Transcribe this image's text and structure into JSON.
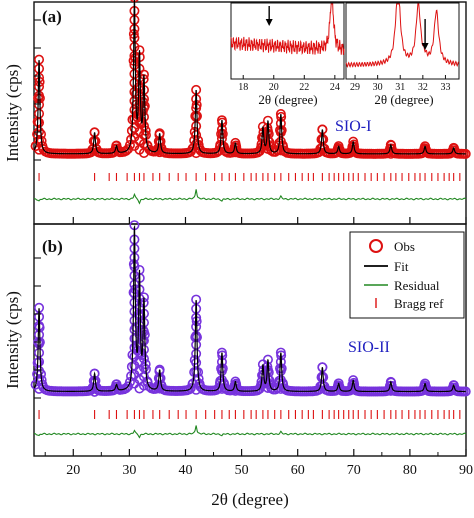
{
  "chart_data": [
    {
      "panel": "(a)",
      "type": "line",
      "sample_label": "SIO-I",
      "sample_color": "#2020c0",
      "obs_color": "#dd1111",
      "ylabel": "Intensity (cps)",
      "xlim": [
        13,
        90
      ],
      "baseline": 0.04,
      "peak_width": 0.18,
      "peaks": [
        {
          "x": 13.9,
          "y": 0.62
        },
        {
          "x": 23.8,
          "y": 0.14
        },
        {
          "x": 27.7,
          "y": 0.05
        },
        {
          "x": 30.9,
          "y": 1.0
        },
        {
          "x": 31.8,
          "y": 0.62
        },
        {
          "x": 32.6,
          "y": 0.48
        },
        {
          "x": 35.4,
          "y": 0.13
        },
        {
          "x": 41.9,
          "y": 0.42
        },
        {
          "x": 46.5,
          "y": 0.22
        },
        {
          "x": 48.9,
          "y": 0.07
        },
        {
          "x": 53.8,
          "y": 0.17
        },
        {
          "x": 54.7,
          "y": 0.21
        },
        {
          "x": 57.0,
          "y": 0.26
        },
        {
          "x": 64.4,
          "y": 0.16
        },
        {
          "x": 67.3,
          "y": 0.05
        },
        {
          "x": 69.9,
          "y": 0.08
        },
        {
          "x": 76.6,
          "y": 0.06
        },
        {
          "x": 82.7,
          "y": 0.05
        },
        {
          "x": 87.8,
          "y": 0.04
        }
      ],
      "bragg_positions": [
        13.9,
        23.8,
        26.4,
        27.7,
        29.6,
        30.9,
        31.8,
        32.6,
        34.2,
        35.4,
        37.1,
        38.7,
        40.1,
        41.9,
        43.6,
        45.2,
        46.5,
        47.8,
        48.9,
        50.4,
        51.7,
        52.6,
        53.8,
        54.7,
        55.9,
        57.0,
        58.4,
        59.6,
        60.8,
        61.9,
        62.8,
        64.4,
        65.6,
        66.5,
        67.3,
        68.2,
        69.1,
        69.9,
        70.8,
        72.0,
        73.1,
        74.2,
        75.4,
        76.6,
        77.5,
        78.6,
        79.8,
        80.9,
        81.8,
        82.7,
        83.9,
        85.0,
        86.1,
        87.0,
        87.8,
        88.9
      ],
      "residual_spikes": [
        {
          "x": 13.9,
          "y": -0.5
        },
        {
          "x": 30.9,
          "y": 1.2
        },
        {
          "x": 31.8,
          "y": -1.0
        },
        {
          "x": 41.9,
          "y": 2.6
        },
        {
          "x": 46.5,
          "y": -0.5
        },
        {
          "x": 57.0,
          "y": 0.6
        }
      ]
    },
    {
      "panel": "(b)",
      "type": "line",
      "sample_label": "SIO-II",
      "sample_color": "#2020c0",
      "obs_color": "#7733dd",
      "ylabel": "Intensity (cps)",
      "xlabel": "2θ (degree)",
      "xlim": [
        13,
        90
      ],
      "xticks": [
        20,
        30,
        40,
        50,
        60,
        70,
        80,
        90
      ],
      "baseline": 0.04,
      "peak_width": 0.18,
      "peaks": [
        {
          "x": 13.9,
          "y": 0.52
        },
        {
          "x": 23.8,
          "y": 0.11
        },
        {
          "x": 27.7,
          "y": 0.04
        },
        {
          "x": 30.9,
          "y": 1.0
        },
        {
          "x": 31.8,
          "y": 0.69
        },
        {
          "x": 32.6,
          "y": 0.54
        },
        {
          "x": 35.4,
          "y": 0.13
        },
        {
          "x": 41.9,
          "y": 0.57
        },
        {
          "x": 46.5,
          "y": 0.24
        },
        {
          "x": 48.9,
          "y": 0.06
        },
        {
          "x": 53.8,
          "y": 0.16
        },
        {
          "x": 54.7,
          "y": 0.19
        },
        {
          "x": 57.0,
          "y": 0.24
        },
        {
          "x": 64.4,
          "y": 0.15
        },
        {
          "x": 67.3,
          "y": 0.05
        },
        {
          "x": 69.9,
          "y": 0.07
        },
        {
          "x": 76.6,
          "y": 0.06
        },
        {
          "x": 82.7,
          "y": 0.05
        },
        {
          "x": 87.8,
          "y": 0.04
        }
      ],
      "bragg_positions": [
        13.9,
        23.8,
        26.4,
        27.7,
        29.6,
        30.9,
        31.8,
        32.6,
        34.2,
        35.4,
        37.1,
        38.7,
        40.1,
        41.9,
        43.6,
        45.2,
        46.5,
        47.8,
        48.9,
        50.4,
        51.7,
        52.6,
        53.8,
        54.7,
        55.9,
        57.0,
        58.4,
        59.6,
        60.8,
        61.9,
        62.8,
        64.4,
        65.6,
        66.5,
        67.3,
        68.2,
        69.1,
        69.9,
        70.8,
        72.0,
        73.1,
        74.2,
        75.4,
        76.6,
        77.5,
        78.6,
        79.8,
        80.9,
        81.8,
        82.7,
        83.9,
        85.0,
        86.1,
        87.0,
        87.8,
        88.9
      ],
      "residual_spikes": [
        {
          "x": 13.9,
          "y": -0.4
        },
        {
          "x": 30.9,
          "y": 0.9
        },
        {
          "x": 31.8,
          "y": -0.8
        },
        {
          "x": 41.9,
          "y": 2.3
        },
        {
          "x": 46.5,
          "y": -0.4
        },
        {
          "x": 57.0,
          "y": 0.5
        }
      ]
    }
  ],
  "legend": {
    "entries": [
      {
        "label": "Obs",
        "marker": "circle",
        "color": "#dd1111"
      },
      {
        "label": "Fit",
        "marker": "line",
        "color": "#000000"
      },
      {
        "label": "Residual",
        "marker": "line",
        "color": "#228822"
      },
      {
        "label": "Bragg ref",
        "marker": "tick",
        "color": "#dd1111"
      }
    ]
  },
  "insets": [
    {
      "xlabel": "2θ (degree)",
      "xlim": [
        17.2,
        24.6
      ],
      "xticks": [
        18,
        20,
        22,
        24
      ],
      "arrow_x": 19.7,
      "color": "#dd1111"
    },
    {
      "xlabel": "2θ (degree)",
      "xlim": [
        28.6,
        33.6
      ],
      "xticks": [
        29,
        30,
        31,
        32,
        33
      ],
      "arrow_x": 32.1,
      "color": "#dd1111"
    }
  ]
}
